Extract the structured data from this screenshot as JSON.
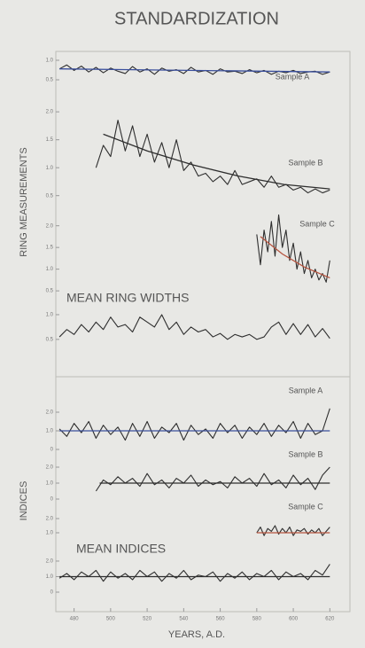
{
  "chart_data": {
    "type": "line",
    "title": "STANDARDIZATION",
    "xlabel": "YEARS, A.D.",
    "xlim": [
      470,
      631
    ],
    "xticks": [
      480,
      500,
      520,
      540,
      560,
      580,
      600,
      620
    ],
    "groups": [
      {
        "label": "RING MEASUREMENTS",
        "panels": [
          {
            "label": "Sample A",
            "ylim": [
              0.4,
              1.05
            ],
            "yticks": [
              {
                "value": 1,
                "label": "1.0"
              },
              0.5
            ],
            "color": "#2e2e2e",
            "x": [
              472,
              476,
              480,
              484,
              488,
              492,
              496,
              500,
              504,
              508,
              512,
              516,
              520,
              524,
              528,
              532,
              536,
              540,
              544,
              548,
              552,
              556,
              560,
              564,
              568,
              572,
              576,
              580,
              584,
              588,
              592,
              596,
              600,
              604,
              608,
              612,
              616,
              620
            ],
            "values": [
              0.78,
              0.88,
              0.74,
              0.85,
              0.7,
              0.82,
              0.68,
              0.8,
              0.72,
              0.66,
              0.84,
              0.7,
              0.78,
              0.64,
              0.8,
              0.72,
              0.76,
              0.66,
              0.82,
              0.7,
              0.74,
              0.64,
              0.78,
              0.7,
              0.72,
              0.66,
              0.76,
              0.68,
              0.74,
              0.64,
              0.72,
              0.68,
              0.74,
              0.66,
              0.7,
              0.72,
              0.64,
              0.7
            ],
            "fit": {
              "x": [
                472,
                620
              ],
              "values": [
                0.78,
                0.7
              ],
              "color": "#3a4f9c"
            }
          },
          {
            "label": "Sample B",
            "ylim": [
              0.4,
              2.05
            ],
            "yticks": [
              {
                "value": 2,
                "label": "2.0"
              },
              1.5,
              {
                "value": 1,
                "label": "1.0"
              },
              0.5
            ],
            "color": "#2e2e2e",
            "x": [
              492,
              496,
              500,
              504,
              508,
              512,
              516,
              520,
              524,
              528,
              532,
              536,
              540,
              544,
              548,
              552,
              556,
              560,
              564,
              568,
              572,
              576,
              580,
              584,
              588,
              592,
              596,
              600,
              604,
              608,
              612,
              616,
              620
            ],
            "values": [
              1.0,
              1.4,
              1.2,
              1.85,
              1.3,
              1.75,
              1.2,
              1.6,
              1.1,
              1.45,
              1.0,
              1.5,
              0.95,
              1.1,
              0.85,
              0.9,
              0.75,
              0.85,
              0.7,
              0.95,
              0.7,
              0.75,
              0.8,
              0.65,
              0.85,
              0.65,
              0.7,
              0.6,
              0.65,
              0.55,
              0.62,
              0.55,
              0.6
            ],
            "fit": {
              "x": [
                496,
                520,
                545,
                570,
                595,
                620
              ],
              "values": [
                1.6,
                1.3,
                1.05,
                0.85,
                0.7,
                0.62
              ],
              "color": "#2e2e2e"
            }
          },
          {
            "label": "Sample C",
            "ylim": [
              0.4,
              2.3
            ],
            "yticks": [
              {
                "value": 2,
                "label": "2.0"
              },
              1.5,
              {
                "value": 1,
                "label": "1.0"
              },
              0.5
            ],
            "color": "#2e2e2e",
            "x": [
              580,
              582,
              584,
              586,
              588,
              590,
              592,
              594,
              596,
              598,
              600,
              602,
              604,
              606,
              608,
              610,
              612,
              614,
              616,
              618,
              620
            ],
            "values": [
              1.8,
              1.1,
              1.9,
              1.4,
              2.1,
              1.3,
              2.25,
              1.5,
              1.9,
              1.2,
              1.6,
              1.0,
              1.4,
              0.9,
              1.2,
              0.8,
              1.0,
              0.75,
              0.9,
              0.7,
              1.2
            ],
            "fit": {
              "x": [
                582,
                594,
                606,
                620
              ],
              "values": [
                1.75,
                1.35,
                1.05,
                0.8
              ],
              "color": "#b5533e"
            }
          },
          {
            "label": "MEAN RING WIDTHS",
            "ylim": [
              0.3,
              1.1
            ],
            "yticks": [
              {
                "value": 1,
                "label": "1.0"
              },
              0.5
            ],
            "color": "#2e2e2e",
            "x": [
              472,
              476,
              480,
              484,
              488,
              492,
              496,
              500,
              504,
              508,
              512,
              516,
              520,
              524,
              528,
              532,
              536,
              540,
              544,
              548,
              552,
              556,
              560,
              564,
              568,
              572,
              576,
              580,
              584,
              588,
              592,
              596,
              600,
              604,
              608,
              612,
              616,
              620
            ],
            "values": [
              0.55,
              0.7,
              0.6,
              0.8,
              0.65,
              0.85,
              0.7,
              0.95,
              0.75,
              0.8,
              0.65,
              0.95,
              0.85,
              0.75,
              1.0,
              0.7,
              0.85,
              0.6,
              0.75,
              0.65,
              0.7,
              0.55,
              0.62,
              0.5,
              0.6,
              0.55,
              0.6,
              0.5,
              0.55,
              0.75,
              0.85,
              0.6,
              0.82,
              0.6,
              0.8,
              0.55,
              0.72,
              0.52
            ]
          }
        ]
      },
      {
        "label": "INDICES",
        "panels": [
          {
            "label": "Sample A",
            "ylim": [
              0,
              2.4
            ],
            "yticks": [
              {
                "value": 2,
                "label": "2.0"
              },
              {
                "value": 1,
                "label": "1.0"
              },
              0
            ],
            "color": "#2e2e2e",
            "x": [
              472,
              476,
              480,
              484,
              488,
              492,
              496,
              500,
              504,
              508,
              512,
              516,
              520,
              524,
              528,
              532,
              536,
              540,
              544,
              548,
              552,
              556,
              560,
              564,
              568,
              572,
              576,
              580,
              584,
              588,
              592,
              596,
              600,
              604,
              608,
              612,
              616,
              620
            ],
            "values": [
              1.1,
              0.7,
              1.4,
              0.9,
              1.5,
              0.6,
              1.3,
              0.8,
              1.2,
              0.5,
              1.4,
              0.7,
              1.5,
              0.6,
              1.2,
              0.9,
              1.4,
              0.5,
              1.3,
              0.8,
              1.1,
              0.6,
              1.4,
              0.9,
              1.3,
              0.6,
              1.2,
              0.8,
              1.4,
              0.7,
              1.3,
              0.9,
              1.5,
              0.6,
              1.4,
              0.8,
              1.0,
              2.2
            ],
            "fit": {
              "x": [
                472,
                620
              ],
              "values": [
                1,
                1
              ],
              "color": "#3a4f9c"
            }
          },
          {
            "label": "Sample B",
            "ylim": [
              0,
              2.2
            ],
            "yticks": [
              {
                "value": 2,
                "label": "2.0"
              },
              {
                "value": 1,
                "label": "1.0"
              },
              0
            ],
            "color": "#2e2e2e",
            "x": [
              492,
              496,
              500,
              504,
              508,
              512,
              516,
              520,
              524,
              528,
              532,
              536,
              540,
              544,
              548,
              552,
              556,
              560,
              564,
              568,
              572,
              576,
              580,
              584,
              588,
              592,
              596,
              600,
              604,
              608,
              612,
              616,
              620
            ],
            "values": [
              0.5,
              1.2,
              0.9,
              1.4,
              1.0,
              1.3,
              0.8,
              1.6,
              0.9,
              1.2,
              0.7,
              1.3,
              1.0,
              1.5,
              0.8,
              1.2,
              0.9,
              1.1,
              0.7,
              1.4,
              1.0,
              1.3,
              0.8,
              1.6,
              0.9,
              1.2,
              0.7,
              1.5,
              0.9,
              1.3,
              0.6,
              1.5,
              2.0
            ],
            "fit": {
              "x": [
                494,
                620
              ],
              "values": [
                1,
                1
              ],
              "color": "#2e2e2e"
            }
          },
          {
            "label": "Sample C",
            "ylim": [
              0.5,
              2.2
            ],
            "yticks": [
              {
                "value": 2,
                "label": "2.0"
              },
              {
                "value": 1,
                "label": "1.0"
              }
            ],
            "color": "#2e2e2e",
            "x": [
              580,
              582,
              584,
              586,
              588,
              590,
              592,
              594,
              596,
              598,
              600,
              602,
              604,
              606,
              608,
              610,
              612,
              614,
              616,
              618,
              620
            ],
            "values": [
              1.0,
              1.4,
              0.8,
              1.3,
              1.1,
              1.5,
              0.9,
              1.3,
              1.0,
              1.4,
              0.8,
              1.2,
              1.1,
              1.3,
              0.9,
              1.2,
              1.0,
              1.3,
              0.8,
              1.1,
              1.4
            ],
            "fit": {
              "x": [
                580,
                620
              ],
              "values": [
                1,
                1
              ],
              "color": "#b5533e"
            }
          },
          {
            "label": "MEAN INDICES",
            "ylim": [
              0,
              2.3
            ],
            "yticks": [
              {
                "value": 2,
                "label": "2.0"
              },
              {
                "value": 1,
                "label": "1.0"
              },
              0
            ],
            "color": "#2e2e2e",
            "x": [
              472,
              476,
              480,
              484,
              488,
              492,
              496,
              500,
              504,
              508,
              512,
              516,
              520,
              524,
              528,
              532,
              536,
              540,
              544,
              548,
              552,
              556,
              560,
              564,
              568,
              572,
              576,
              580,
              584,
              588,
              592,
              596,
              600,
              604,
              608,
              612,
              616,
              620
            ],
            "values": [
              0.9,
              1.2,
              0.8,
              1.3,
              1.0,
              1.4,
              0.7,
              1.3,
              0.9,
              1.2,
              0.8,
              1.4,
              1.0,
              1.3,
              0.7,
              1.2,
              0.9,
              1.4,
              0.8,
              1.1,
              1.0,
              1.3,
              0.7,
              1.2,
              0.9,
              1.3,
              0.8,
              1.2,
              1.0,
              1.4,
              0.8,
              1.3,
              1.0,
              1.2,
              0.8,
              1.4,
              1.1,
              1.8
            ],
            "fit": {
              "x": [
                472,
                620
              ],
              "values": [
                1,
                1
              ],
              "color": "#2e2e2e"
            }
          }
        ]
      }
    ]
  }
}
